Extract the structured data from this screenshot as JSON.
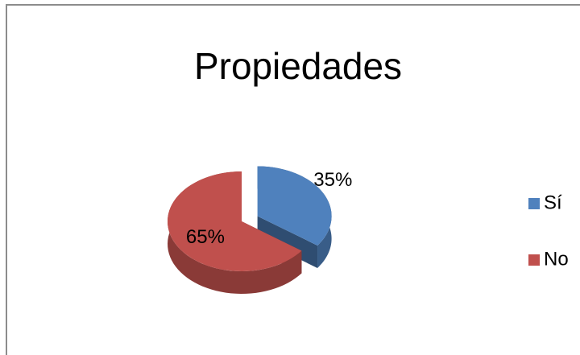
{
  "chart_data": {
    "type": "pie",
    "title": "Propiedades",
    "categories": [
      "Sí",
      "No"
    ],
    "values": [
      35,
      65
    ],
    "value_labels": [
      "35%",
      "65%"
    ],
    "colors": [
      "#4f81bd",
      "#c0504d"
    ],
    "legend": "right"
  }
}
